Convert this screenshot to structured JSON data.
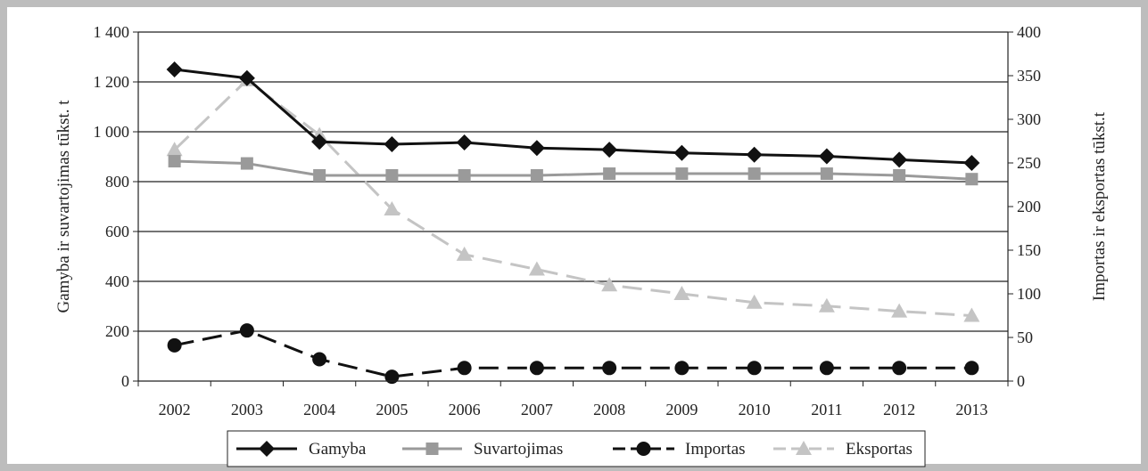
{
  "chart_data": {
    "type": "line",
    "title": "",
    "xlabel": "",
    "ylabel": "Gamyba ir suvartojimas tūkst. t",
    "y2label": "Importas ir eksportas tūkst.t",
    "x": [
      "2002",
      "2003",
      "2004",
      "2005",
      "2006",
      "2007",
      "2008",
      "2009",
      "2010",
      "2011",
      "2012",
      "2013"
    ],
    "ylim": [
      0,
      1400
    ],
    "y2lim": [
      0,
      400
    ],
    "yticks": [
      "0",
      "200",
      "400",
      "600",
      "800",
      "1 000",
      "1 200",
      "1 400"
    ],
    "y2ticks": [
      "0",
      "50",
      "100",
      "150",
      "200",
      "250",
      "300",
      "350",
      "400"
    ],
    "grid": "horizontal",
    "legend_position": "bottom",
    "series": [
      {
        "name": "Gamyba",
        "axis": "left",
        "color": "#111111",
        "marker": "diamond",
        "dash": "solid",
        "values": [
          1250,
          1215,
          960,
          950,
          957,
          935,
          928,
          915,
          908,
          902,
          888,
          875
        ]
      },
      {
        "name": "Suvartojimas",
        "axis": "left",
        "color": "#9a9a9a",
        "marker": "square",
        "dash": "solid",
        "values": [
          882,
          873,
          825,
          825,
          825,
          825,
          832,
          832,
          832,
          832,
          825,
          810
        ]
      },
      {
        "name": "Importas",
        "axis": "right",
        "color": "#111111",
        "marker": "circle",
        "dash": "dashed",
        "values": [
          41,
          58,
          25,
          5,
          15,
          15,
          15,
          15,
          15,
          15,
          15,
          15
        ]
      },
      {
        "name": "Eksportas",
        "axis": "right",
        "color": "#c4c4c4",
        "marker": "triangle",
        "dash": "dashed",
        "values": [
          265,
          345,
          282,
          197,
          145,
          128,
          110,
          100,
          90,
          86,
          80,
          75
        ]
      }
    ]
  }
}
